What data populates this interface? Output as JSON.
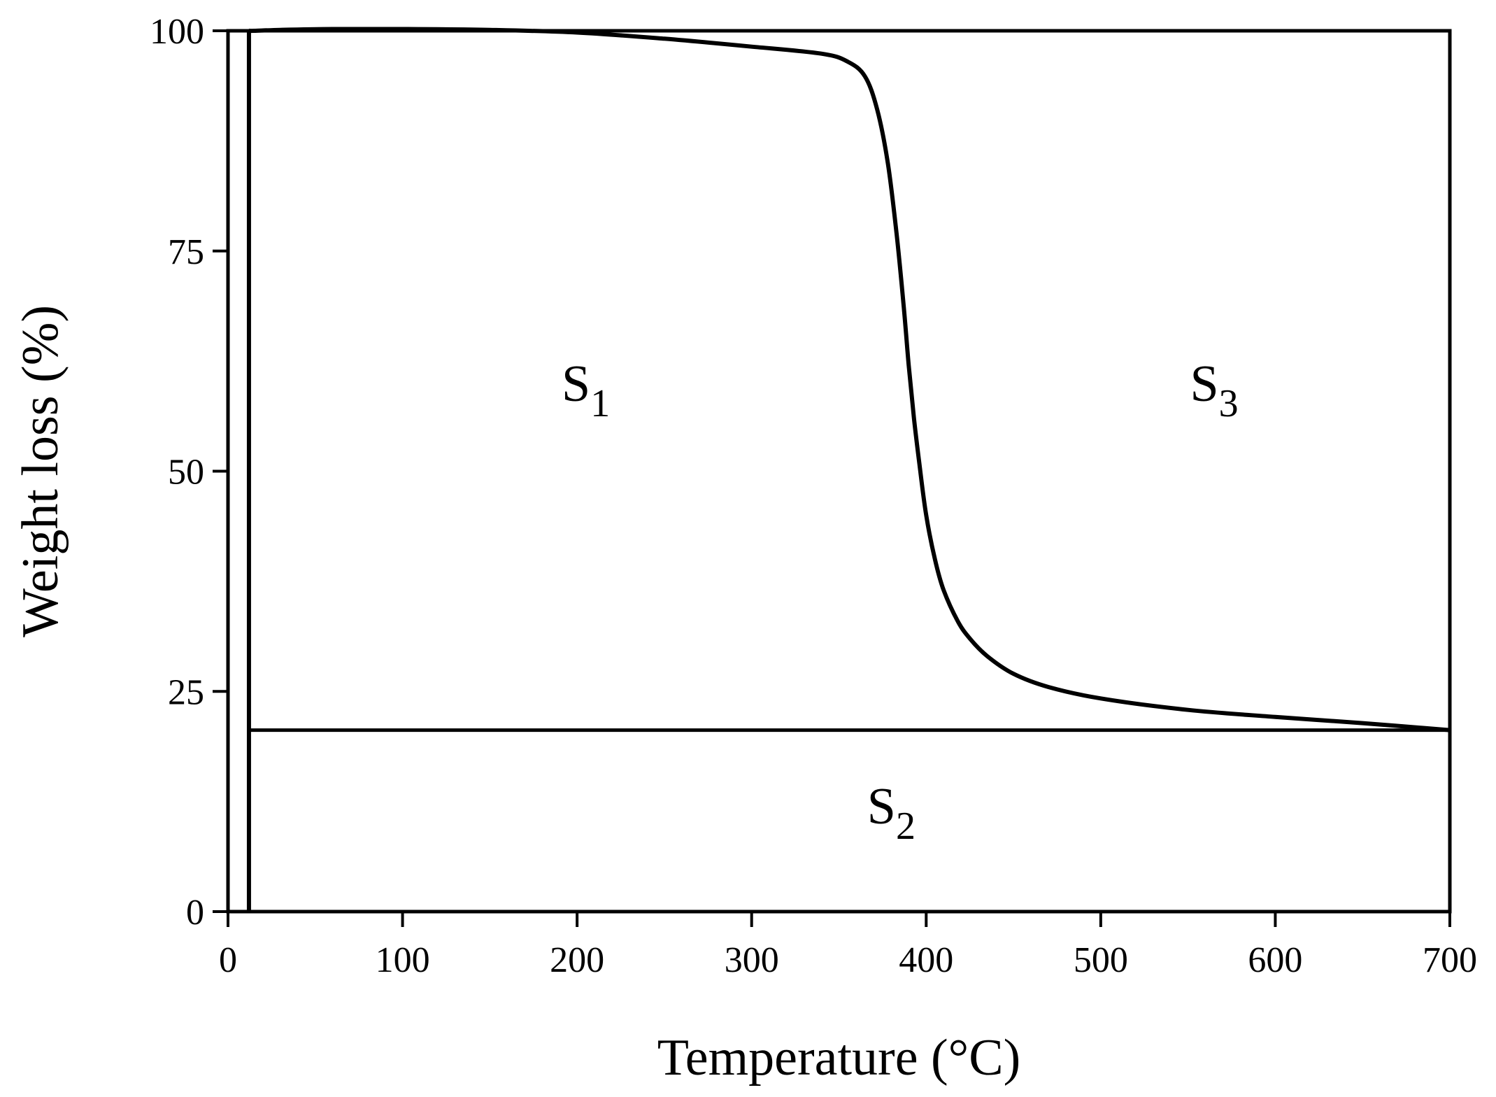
{
  "chart_data": {
    "type": "line",
    "xlabel": "Temperature (°C)",
    "ylabel": "Weight loss (%)",
    "xlim": [
      0,
      700
    ],
    "ylim": [
      0,
      100
    ],
    "xticks": [
      "0",
      "100",
      "200",
      "300",
      "400",
      "500",
      "600",
      "700"
    ],
    "yticks": [
      "0",
      "25",
      "50",
      "75",
      "100"
    ],
    "grid": false,
    "series": [
      {
        "values_x": [
          12,
          15,
          30,
          60,
          100,
          150,
          200,
          250,
          300,
          340,
          355,
          365,
          372,
          378,
          383,
          387,
          390,
          393,
          396,
          400,
          405,
          410,
          418,
          425,
          435,
          450,
          470,
          500,
          550,
          600,
          650,
          700
        ],
        "values_y": [
          100,
          100,
          100.1,
          100.2,
          100.2,
          100.1,
          99.8,
          99.1,
          98.2,
          97.4,
          96.5,
          94.8,
          91,
          85,
          77,
          69,
          62,
          56,
          51,
          45,
          40,
          36.5,
          33,
          31,
          29,
          27,
          25.5,
          24.2,
          22.9,
          22.1,
          21.4,
          20.6
        ]
      }
    ],
    "annotations": [
      {
        "base": "S",
        "sub": "1",
        "x": 205,
        "y": 58
      },
      {
        "base": "S",
        "sub": "2",
        "x": 380,
        "y": 10
      },
      {
        "base": "S",
        "sub": "3",
        "x": 565,
        "y": 58
      }
    ],
    "reference_lines": {
      "vertical_x": 12,
      "horizontal_y": 20.6
    }
  }
}
